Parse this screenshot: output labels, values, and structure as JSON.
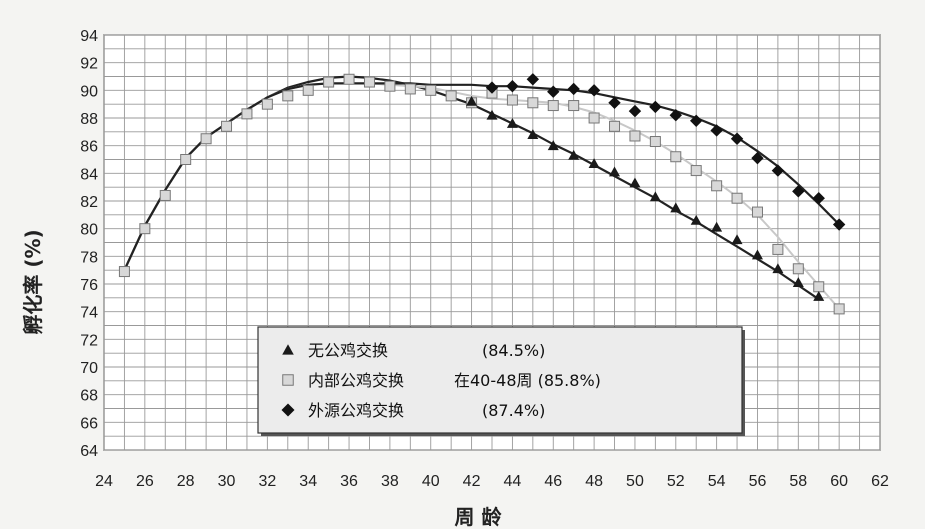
{
  "chart_data": {
    "type": "line",
    "xlabel": "周 龄",
    "ylabel": "孵化率 (%)",
    "xlim": [
      24,
      62
    ],
    "ylim": [
      64,
      94
    ],
    "x_ticks": [
      "24",
      "26",
      "28",
      "30",
      "32",
      "34",
      "36",
      "38",
      "40",
      "42",
      "44",
      "46",
      "48",
      "50",
      "52",
      "54",
      "56",
      "58",
      "60",
      "62"
    ],
    "y_ticks": [
      "64",
      "66",
      "68",
      "70",
      "72",
      "74",
      "76",
      "78",
      "80",
      "82",
      "84",
      "86",
      "88",
      "90",
      "92",
      "94"
    ],
    "grid": true,
    "legend_position": "bottom-left inside",
    "series": [
      {
        "name": "无公鸡交换",
        "legend_label": "无公鸡交换",
        "legend_note": "(84.5%)",
        "marker": "triangle",
        "color": "#222222",
        "x": [
          42,
          43,
          44,
          45,
          46,
          47,
          48,
          49,
          50,
          51,
          52,
          53,
          54,
          55,
          56,
          57,
          58,
          59
        ],
        "y": [
          89.2,
          88.2,
          87.6,
          86.8,
          86.0,
          85.3,
          84.7,
          84.1,
          83.3,
          82.3,
          81.5,
          80.6,
          80.1,
          79.2,
          78.1,
          77.1,
          76.1,
          75.1
        ],
        "fit_x": [
          25,
          26,
          27,
          28,
          29,
          30,
          31,
          32,
          33,
          34,
          35,
          36,
          37,
          38,
          39,
          40,
          41,
          42,
          43,
          44,
          45,
          46,
          47,
          48,
          49,
          50,
          51,
          52,
          53,
          54,
          55,
          56,
          57,
          58,
          59
        ],
        "fit_y": [
          77.0,
          80.2,
          82.8,
          85.1,
          86.6,
          87.6,
          88.6,
          89.5,
          90.2,
          90.6,
          90.9,
          91.0,
          90.9,
          90.7,
          90.4,
          90.0,
          89.5,
          89.0,
          88.3,
          87.6,
          86.9,
          86.1,
          85.4,
          84.6,
          83.8,
          83.0,
          82.2,
          81.3,
          80.5,
          79.6,
          78.7,
          77.8,
          76.9,
          75.9,
          74.9
        ]
      },
      {
        "name": "内部公鸡交换",
        "legend_label": "内部公鸡交换",
        "legend_note": "在40-48周 (85.8%)",
        "marker": "square",
        "color": "#aaaaaa",
        "x": [
          25,
          26,
          27,
          28,
          29,
          30,
          31,
          32,
          33,
          34,
          35,
          36,
          37,
          38,
          39,
          40,
          41,
          42,
          43,
          44,
          45,
          46,
          47,
          48,
          49,
          50,
          51,
          52,
          53,
          54,
          55,
          56,
          57,
          58,
          59,
          60
        ],
        "y": [
          76.9,
          80.0,
          82.4,
          85.0,
          86.5,
          87.4,
          88.3,
          89.0,
          89.6,
          90.0,
          90.6,
          90.8,
          90.6,
          90.3,
          90.1,
          90.0,
          89.6,
          89.1,
          89.8,
          89.3,
          89.1,
          88.9,
          88.9,
          88.0,
          87.4,
          86.7,
          86.3,
          85.2,
          84.2,
          83.1,
          82.2,
          81.2,
          78.5,
          77.1,
          75.8,
          74.2
        ],
        "fit_x": [
          25,
          26,
          27,
          28,
          29,
          30,
          31,
          32,
          33,
          34,
          35,
          36,
          37,
          38,
          39,
          40,
          41,
          42,
          43,
          44,
          45,
          46,
          47,
          48,
          49,
          50,
          51,
          52,
          53,
          54,
          55,
          56,
          57,
          58,
          59,
          60
        ],
        "fit_y": [
          77.0,
          80.2,
          82.8,
          85.1,
          86.6,
          87.6,
          88.6,
          89.5,
          90.1,
          90.4,
          90.5,
          90.5,
          90.5,
          90.4,
          90.3,
          90.2,
          89.9,
          89.6,
          89.4,
          89.3,
          89.2,
          89.1,
          88.8,
          88.4,
          87.8,
          87.1,
          86.3,
          85.4,
          84.4,
          83.4,
          82.3,
          81.0,
          79.4,
          77.6,
          75.9,
          74.2
        ]
      },
      {
        "name": "外源公鸡交换",
        "legend_label": "外源公鸡交换",
        "legend_note": "(87.4%)",
        "marker": "diamond",
        "color": "#111111",
        "x": [
          43,
          44,
          45,
          46,
          47,
          48,
          49,
          50,
          51,
          52,
          53,
          54,
          55,
          56,
          57,
          58,
          59,
          60
        ],
        "y": [
          90.2,
          90.3,
          90.8,
          89.9,
          90.1,
          90.0,
          89.1,
          88.5,
          88.8,
          88.2,
          87.8,
          87.1,
          86.5,
          85.1,
          84.2,
          82.7,
          82.2,
          80.3
        ],
        "fit_x": [
          25,
          26,
          27,
          28,
          29,
          30,
          31,
          32,
          33,
          34,
          35,
          36,
          37,
          38,
          39,
          40,
          41,
          42,
          43,
          44,
          45,
          46,
          47,
          48,
          49,
          50,
          51,
          52,
          53,
          54,
          55,
          56,
          57,
          58,
          59,
          60
        ],
        "fit_y": [
          77.0,
          80.2,
          82.8,
          85.1,
          86.6,
          87.6,
          88.6,
          89.5,
          90.1,
          90.4,
          90.5,
          90.5,
          90.5,
          90.5,
          90.5,
          90.4,
          90.4,
          90.4,
          90.3,
          90.3,
          90.2,
          90.1,
          90.0,
          89.8,
          89.5,
          89.2,
          88.9,
          88.5,
          88.0,
          87.4,
          86.6,
          85.6,
          84.5,
          83.2,
          81.8,
          80.3
        ]
      }
    ]
  }
}
